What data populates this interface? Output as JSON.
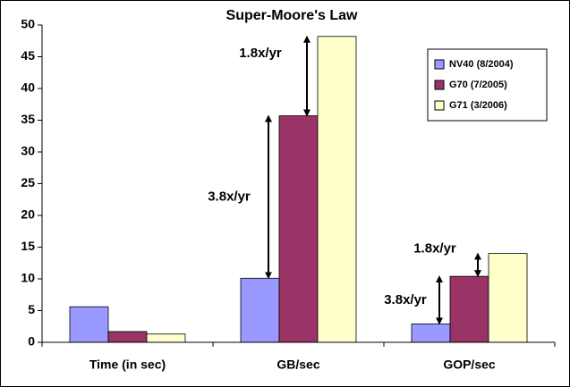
{
  "chart_data": {
    "type": "bar",
    "title": "Super-Moore's Law",
    "categories": [
      "Time (in sec)",
      "GB/sec",
      "GOP/sec"
    ],
    "series": [
      {
        "name": "NV40 (8/2004)",
        "color": "#9999ff",
        "values": [
          5.6,
          10.1,
          2.9
        ]
      },
      {
        "name": "G70 (7/2005)",
        "color": "#993366",
        "values": [
          1.7,
          35.7,
          10.4
        ]
      },
      {
        "name": "G71 (3/2006)",
        "color": "#ffffcc",
        "values": [
          1.3,
          48.2,
          14.0
        ]
      }
    ],
    "ylim": [
      0,
      50
    ],
    "yticks": [
      0,
      5,
      10,
      15,
      20,
      25,
      30,
      35,
      40,
      45,
      50
    ],
    "grid": false,
    "legend": "upper right",
    "annotations": [
      "3.8x/yr",
      "1.8x/yr",
      "3.8x/yr",
      "1.8x/yr"
    ]
  }
}
